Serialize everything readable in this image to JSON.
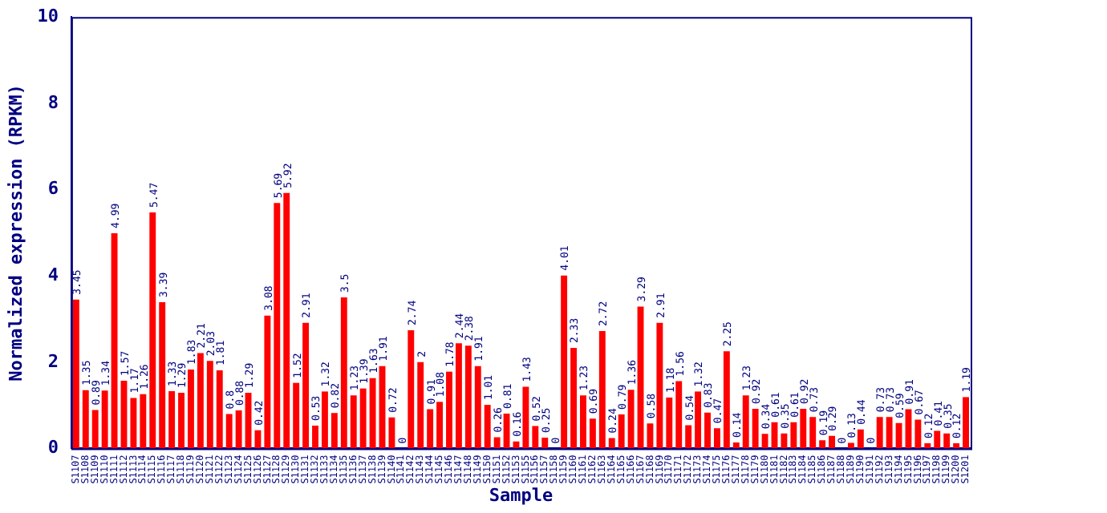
{
  "chart_data": {
    "type": "bar",
    "xlabel": "Sample",
    "ylabel": "Normalized expression (RPKM)",
    "categories": [
      "S1107",
      "S1108",
      "S1109",
      "S1110",
      "S1111",
      "S1112",
      "S1113",
      "S1114",
      "S1115",
      "S1116",
      "S1117",
      "S1118",
      "S1119",
      "S1120",
      "S1121",
      "S1122",
      "S1123",
      "S1124",
      "S1125",
      "S1126",
      "S1127",
      "S1128",
      "S1129",
      "S1130",
      "S1131",
      "S1132",
      "S1133",
      "S1134",
      "S1135",
      "S1136",
      "S1137",
      "S1138",
      "S1139",
      "S1140",
      "S1141",
      "S1142",
      "S1143",
      "S1144",
      "S1145",
      "S1146",
      "S1147",
      "S1148",
      "S1149",
      "S1150",
      "S1151",
      "S1152",
      "S1153",
      "S1155",
      "S1156",
      "S1157",
      "S1158",
      "S1159",
      "S1160",
      "S1161",
      "S1162",
      "S1163",
      "S1164",
      "S1165",
      "S1166",
      "S1167",
      "S1168",
      "S1169",
      "S1170",
      "S1171",
      "S1172",
      "S1173",
      "S1174",
      "S1175",
      "S1176",
      "S1177",
      "S1178",
      "S1179",
      "S1180",
      "S1181",
      "S1182",
      "S1183",
      "S1184",
      "S1185",
      "S1186",
      "S1187",
      "S1188",
      "S1189",
      "S1190",
      "S1191",
      "S1192",
      "S1193",
      "S1194",
      "S1195",
      "S1196",
      "S1197",
      "S1198",
      "S1199",
      "S1200",
      "S1201"
    ],
    "values": [
      3.45,
      1.35,
      0.89,
      1.34,
      4.99,
      1.57,
      1.17,
      1.26,
      5.47,
      3.39,
      1.33,
      1.29,
      1.83,
      2.21,
      2.03,
      1.81,
      0.8,
      0.88,
      1.29,
      0.42,
      3.08,
      5.69,
      5.92,
      1.52,
      2.91,
      0.53,
      1.32,
      0.82,
      3.5,
      1.23,
      1.39,
      1.63,
      1.91,
      0.72,
      0,
      2.74,
      2,
      0.91,
      1.08,
      1.78,
      2.44,
      2.38,
      1.91,
      1.01,
      0.26,
      0.81,
      0.16,
      1.43,
      0.52,
      0.25,
      0,
      4.01,
      2.33,
      1.23,
      0.69,
      2.72,
      0.24,
      0.79,
      1.36,
      3.29,
      0.58,
      2.91,
      1.18,
      1.56,
      0.54,
      1.32,
      0.83,
      0.47,
      2.25,
      0.14,
      1.23,
      0.92,
      0.34,
      0.61,
      0.35,
      0.61,
      0.92,
      0.73,
      0.19,
      0.29,
      0,
      0.13,
      0.44,
      0,
      0.73,
      0.73,
      0.59,
      0.91,
      0.67,
      0.12,
      0.41,
      0.35,
      0.12,
      1.19
    ],
    "color": "#ff0000",
    "ylim": [
      0,
      10
    ],
    "yticks": [
      0,
      2,
      4,
      6,
      8,
      10
    ],
    "data_labels": true,
    "grid": false,
    "legend": false
  }
}
